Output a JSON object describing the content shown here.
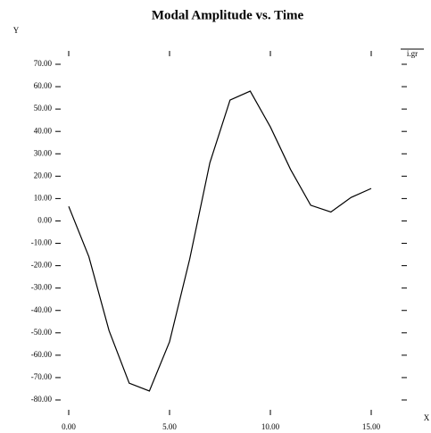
{
  "chart_data": {
    "type": "line",
    "title": "Modal Amplitude vs. Time",
    "y_label": "Y",
    "x_label": "X",
    "corner_label": "i.gr",
    "x": [
      0,
      1,
      2,
      3,
      4,
      5,
      6,
      7,
      8,
      9,
      10,
      11,
      12,
      13,
      14,
      15
    ],
    "series": [
      {
        "name": "Modal Amplitude",
        "color": "#000000",
        "values": [
          6.5,
          -16,
          -49,
          -72.5,
          -76,
          -54,
          -17,
          26,
          54,
          58,
          42,
          23,
          7,
          4,
          10.5,
          14.5
        ]
      }
    ],
    "xlim": [
      0,
      15
    ],
    "xticks": [
      {
        "value": 0,
        "label": "0.00"
      },
      {
        "value": 5,
        "label": "5.00"
      },
      {
        "value": 10,
        "label": "10.00"
      },
      {
        "value": 15,
        "label": "15.00"
      }
    ],
    "ylim": [
      -80,
      70
    ],
    "yticks": [
      {
        "value": 70,
        "label": "70.00"
      },
      {
        "value": 60,
        "label": "60.00"
      },
      {
        "value": 50,
        "label": "50.00"
      },
      {
        "value": 40,
        "label": "40.00"
      },
      {
        "value": 30,
        "label": "30.00"
      },
      {
        "value": 20,
        "label": "20.00"
      },
      {
        "value": 10,
        "label": "10.00"
      },
      {
        "value": 0,
        "label": "0.00"
      },
      {
        "value": -10,
        "label": "-10.00"
      },
      {
        "value": -20,
        "label": "-20.00"
      },
      {
        "value": -30,
        "label": "-30.00"
      },
      {
        "value": -40,
        "label": "-40.00"
      },
      {
        "value": -50,
        "label": "-50.00"
      },
      {
        "value": -60,
        "label": "-60.00"
      },
      {
        "value": -70,
        "label": "-70.00"
      },
      {
        "value": -80,
        "label": "-80.00"
      }
    ],
    "grid": false
  }
}
